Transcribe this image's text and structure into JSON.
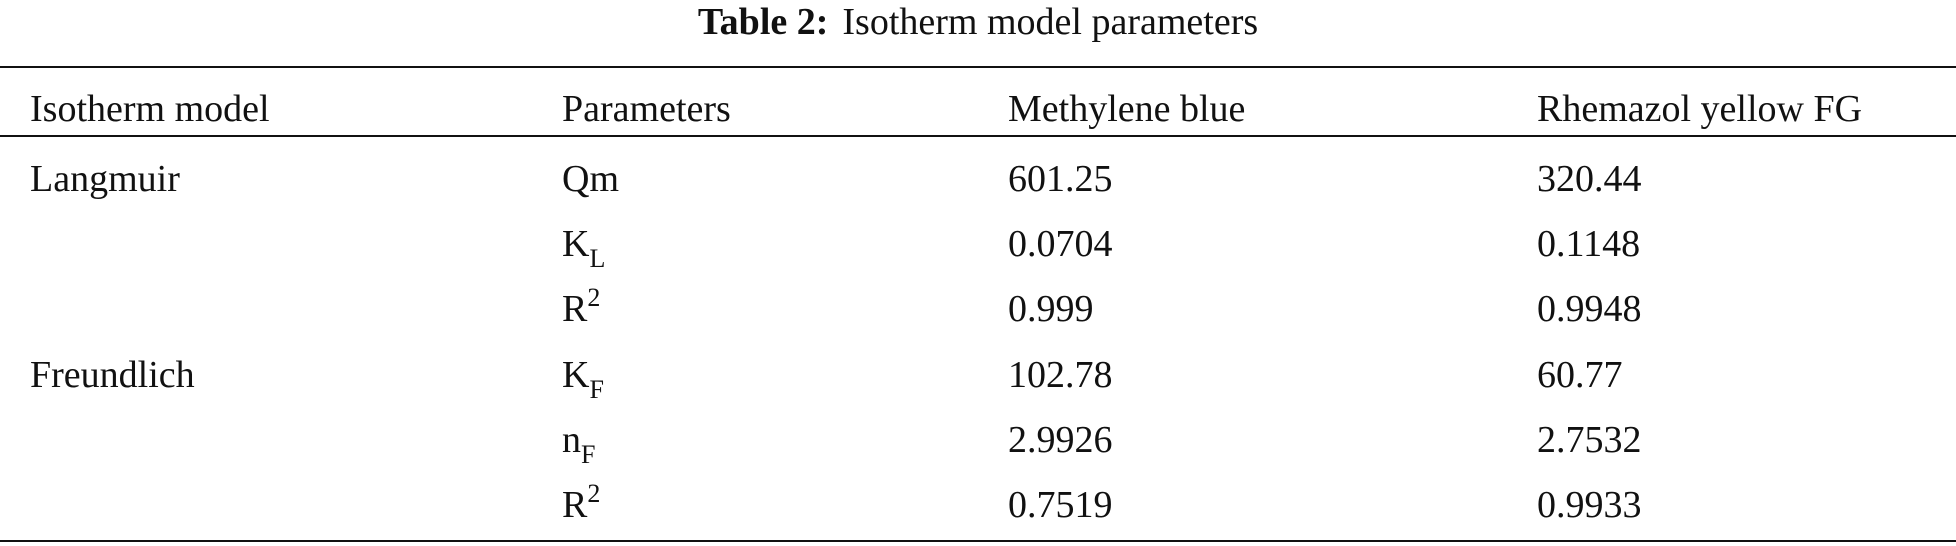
{
  "caption": {
    "label": "Table 2:",
    "title": "Isotherm model parameters"
  },
  "table": {
    "headers": [
      "Isotherm model",
      "Parameters",
      "Methylene blue",
      "Rhemazol yellow FG"
    ],
    "rows": [
      {
        "model": "Langmuir",
        "param_base": "Qm",
        "param_sub": "",
        "param_sup": "",
        "methylene_blue": "601.25",
        "rhemazol_yellow": "320.44"
      },
      {
        "model": "",
        "param_base": "K",
        "param_sub": "L",
        "param_sup": "",
        "methylene_blue": "0.0704",
        "rhemazol_yellow": "0.1148"
      },
      {
        "model": "",
        "param_base": "R",
        "param_sub": "",
        "param_sup": "2",
        "methylene_blue": "0.999",
        "rhemazol_yellow": "0.9948"
      },
      {
        "model": "Freundlich",
        "param_base": "K",
        "param_sub": "F",
        "param_sup": "",
        "methylene_blue": "102.78",
        "rhemazol_yellow": "60.77"
      },
      {
        "model": "",
        "param_base": "n",
        "param_sub": "F",
        "param_sup": "",
        "methylene_blue": "2.9926",
        "rhemazol_yellow": "2.7532"
      },
      {
        "model": "",
        "param_base": "R",
        "param_sub": "",
        "param_sup": "2",
        "methylene_blue": "0.7519",
        "rhemazol_yellow": "0.9933"
      }
    ]
  }
}
